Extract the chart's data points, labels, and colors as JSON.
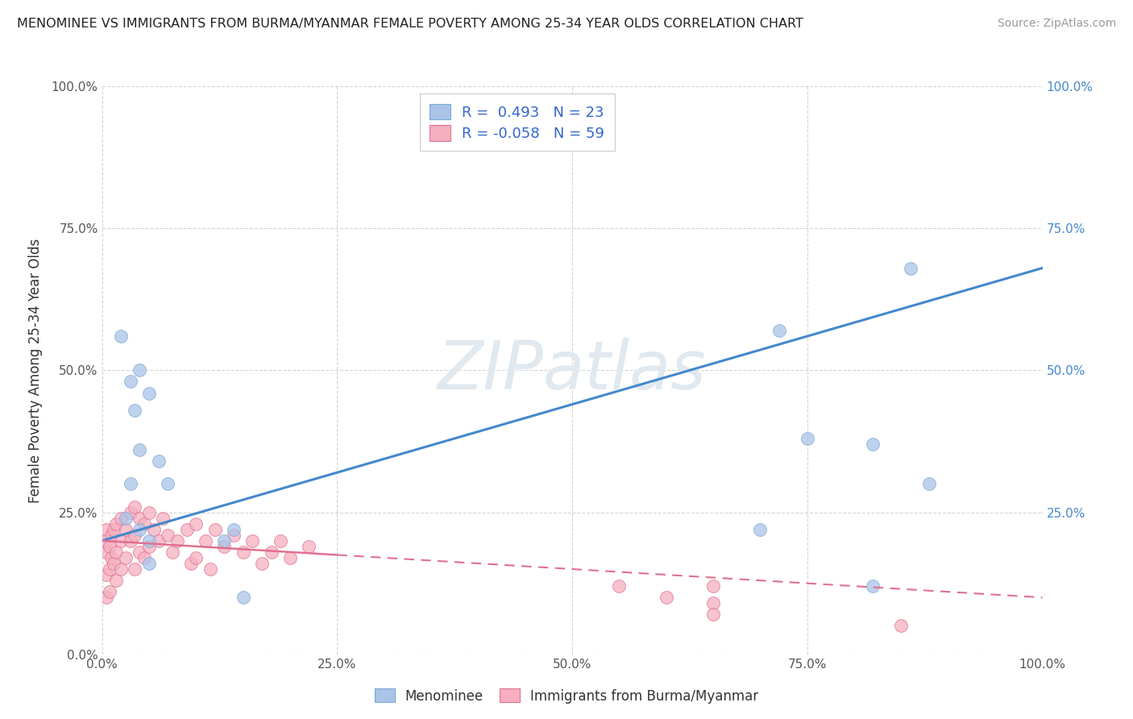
{
  "title": "MENOMINEE VS IMMIGRANTS FROM BURMA/MYANMAR FEMALE POVERTY AMONG 25-34 YEAR OLDS CORRELATION CHART",
  "source": "Source: ZipAtlas.com",
  "ylabel": "Female Poverty Among 25-34 Year Olds",
  "xlim": [
    0.0,
    1.0
  ],
  "ylim": [
    0.0,
    1.0
  ],
  "legend_R1": " 0.493",
  "legend_N1": "23",
  "legend_R2": "-0.058",
  "legend_N2": "59",
  "menominee_color": "#aac4e8",
  "burma_color": "#f5afc0",
  "menominee_edge": "#7aaad4",
  "burma_edge": "#e07090",
  "line_menominee_color": "#4488cc",
  "line_burma_color": "#e07090",
  "background_color": "#ffffff",
  "grid_color": "#d0d0d0",
  "menominee_x": [
    0.02,
    0.025,
    0.03,
    0.03,
    0.035,
    0.04,
    0.04,
    0.04,
    0.05,
    0.05,
    0.05,
    0.06,
    0.07,
    0.13,
    0.14,
    0.15,
    0.7,
    0.72,
    0.75,
    0.82,
    0.82,
    0.86,
    0.88
  ],
  "menominee_y": [
    0.56,
    0.24,
    0.3,
    0.48,
    0.43,
    0.36,
    0.5,
    0.22,
    0.46,
    0.2,
    0.16,
    0.34,
    0.3,
    0.2,
    0.22,
    0.1,
    0.22,
    0.57,
    0.38,
    0.37,
    0.12,
    0.68,
    0.3
  ],
  "burma_x": [
    0.005,
    0.005,
    0.005,
    0.005,
    0.005,
    0.008,
    0.008,
    0.008,
    0.01,
    0.01,
    0.012,
    0.012,
    0.015,
    0.015,
    0.015,
    0.02,
    0.02,
    0.02,
    0.025,
    0.025,
    0.03,
    0.03,
    0.035,
    0.035,
    0.035,
    0.04,
    0.04,
    0.045,
    0.045,
    0.05,
    0.05,
    0.055,
    0.06,
    0.065,
    0.07,
    0.075,
    0.08,
    0.09,
    0.095,
    0.1,
    0.1,
    0.11,
    0.115,
    0.12,
    0.13,
    0.14,
    0.15,
    0.16,
    0.17,
    0.18,
    0.19,
    0.2,
    0.22,
    0.55,
    0.6,
    0.65,
    0.65,
    0.65,
    0.85
  ],
  "burma_y": [
    0.22,
    0.2,
    0.18,
    0.14,
    0.1,
    0.19,
    0.15,
    0.11,
    0.21,
    0.17,
    0.22,
    0.16,
    0.23,
    0.18,
    0.13,
    0.24,
    0.2,
    0.15,
    0.22,
    0.17,
    0.25,
    0.2,
    0.26,
    0.21,
    0.15,
    0.24,
    0.18,
    0.23,
    0.17,
    0.25,
    0.19,
    0.22,
    0.2,
    0.24,
    0.21,
    0.18,
    0.2,
    0.22,
    0.16,
    0.23,
    0.17,
    0.2,
    0.15,
    0.22,
    0.19,
    0.21,
    0.18,
    0.2,
    0.16,
    0.18,
    0.2,
    0.17,
    0.19,
    0.12,
    0.1,
    0.09,
    0.12,
    0.07,
    0.05
  ],
  "menominee_line_x": [
    0.0,
    1.0
  ],
  "menominee_line_y": [
    0.2,
    0.68
  ],
  "burma_line_x": [
    0.0,
    1.0
  ],
  "burma_line_y": [
    0.2,
    0.1
  ],
  "burma_line_solid_end": 0.25,
  "watermark_text": "ZIPatlas",
  "title_fontsize": 11.5,
  "source_fontsize": 10,
  "axis_label_fontsize": 12,
  "tick_fontsize": 11,
  "legend_fontsize": 13,
  "scatter_size": 130,
  "scatter_alpha": 0.75
}
